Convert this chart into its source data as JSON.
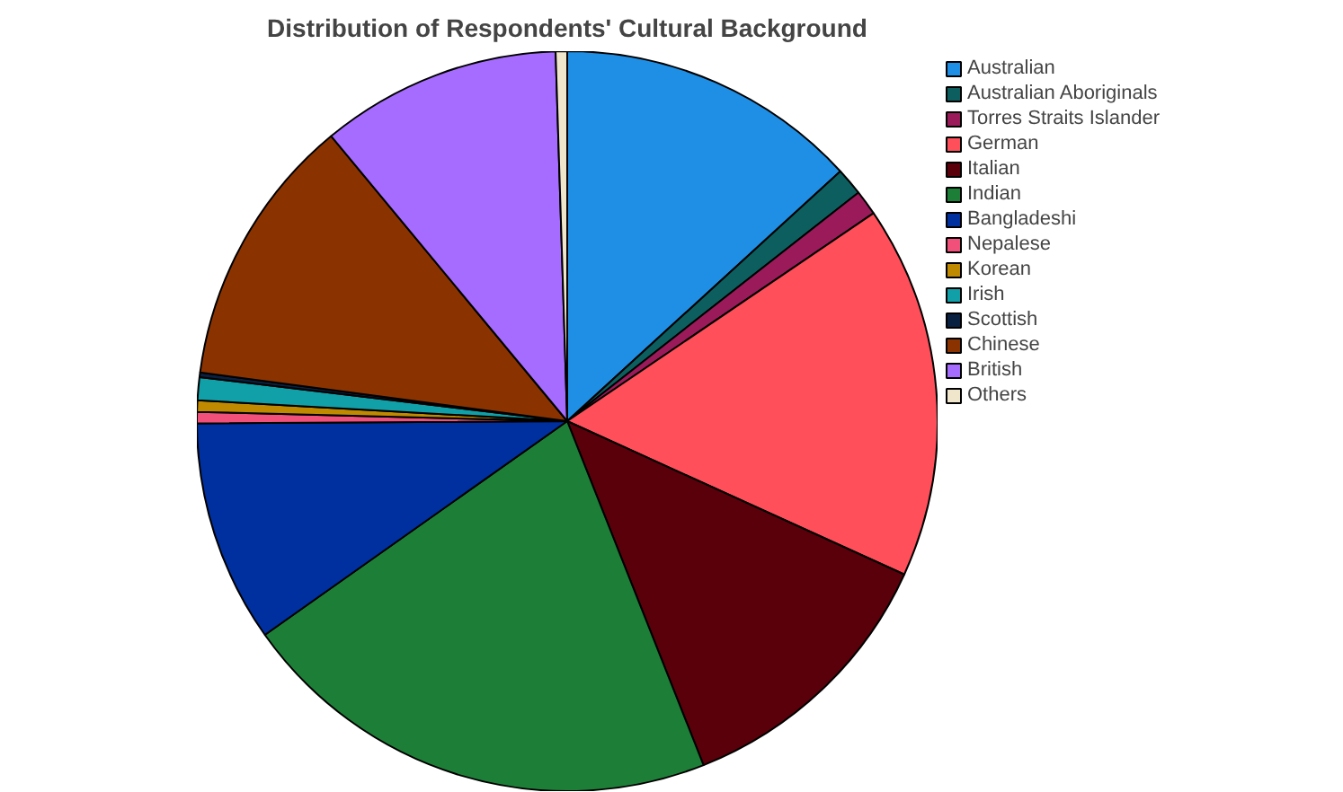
{
  "chart_data": {
    "type": "pie",
    "title": "Distribution of Respondents' Cultural Background",
    "categories": [
      "Australian",
      "Australian Aboriginals",
      "Torres Straits Islander",
      "German",
      "Italian",
      "Indian",
      "Bangladeshi",
      "Nepalese",
      "Korean",
      "Irish",
      "Scottish",
      "Chinese",
      "British",
      "Others"
    ],
    "values": [
      13.2,
      1.2,
      1.1,
      16.3,
      12.2,
      21.2,
      9.7,
      0.5,
      0.5,
      1.0,
      0.2,
      11.9,
      10.5,
      0.5
    ],
    "colors": [
      "#1f8fe5",
      "#0d5f5f",
      "#9b1b5a",
      "#ff4f5a",
      "#5a000a",
      "#1d7f37",
      "#0030a0",
      "#f0507a",
      "#c08a00",
      "#11a0a8",
      "#0a2040",
      "#8a3300",
      "#a66cff",
      "#f0e6cc"
    ],
    "legend": "top right"
  }
}
